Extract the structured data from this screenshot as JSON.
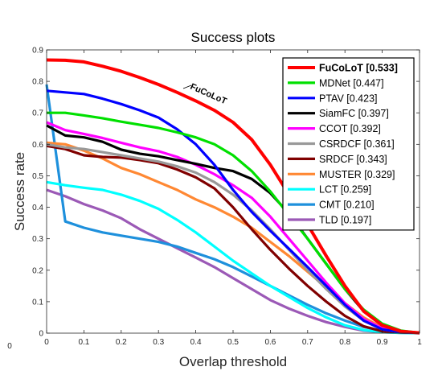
{
  "chart_data": {
    "type": "line",
    "title": "Success plots",
    "xlabel": "Overlap threshold",
    "ylabel": "Success rate",
    "xlim": [
      0,
      1
    ],
    "ylim": [
      0,
      0.9
    ],
    "x_ticks": [
      "0",
      "0.1",
      "0.2",
      "0.3",
      "0.4",
      "0.5",
      "0.6",
      "0.7",
      "0.8",
      "0.9",
      "1"
    ],
    "y_ticks": [
      "0",
      "0.1",
      "0.2",
      "0.3",
      "0.4",
      "0.5",
      "0.6",
      "0.7",
      "0.8",
      "0.9"
    ],
    "stray_tick": "0",
    "legend_position": "top-right",
    "annotation": "FuCoLoT",
    "grid": false,
    "x": [
      0,
      0.05,
      0.1,
      0.15,
      0.2,
      0.25,
      0.3,
      0.35,
      0.4,
      0.45,
      0.5,
      0.55,
      0.6,
      0.65,
      0.7,
      0.75,
      0.8,
      0.85,
      0.9,
      0.95,
      1.0
    ],
    "series": [
      {
        "name": "FuCoLoT [0.533]",
        "color": "#ff0000",
        "bold": true,
        "values": [
          0.868,
          0.867,
          0.862,
          0.848,
          0.832,
          0.812,
          0.79,
          0.765,
          0.738,
          0.708,
          0.67,
          0.615,
          0.535,
          0.44,
          0.345,
          0.245,
          0.15,
          0.07,
          0.025,
          0.006,
          0.001
        ]
      },
      {
        "name": "MDNet [0.447]",
        "color": "#00e000",
        "bold": false,
        "values": [
          0.7,
          0.7,
          0.692,
          0.683,
          0.672,
          0.662,
          0.652,
          0.638,
          0.622,
          0.6,
          0.565,
          0.515,
          0.45,
          0.375,
          0.3,
          0.22,
          0.14,
          0.075,
          0.03,
          0.008,
          0.001
        ]
      },
      {
        "name": "PTAV [0.423]",
        "color": "#0000ff",
        "bold": false,
        "values": [
          0.77,
          0.765,
          0.76,
          0.745,
          0.728,
          0.708,
          0.685,
          0.648,
          0.6,
          0.535,
          0.455,
          0.385,
          0.325,
          0.268,
          0.21,
          0.15,
          0.09,
          0.04,
          0.012,
          0.003,
          0.001
        ]
      },
      {
        "name": "SiamFC [0.397]",
        "color": "#000000",
        "bold": false,
        "values": [
          0.66,
          0.628,
          0.622,
          0.608,
          0.583,
          0.57,
          0.562,
          0.55,
          0.538,
          0.525,
          0.515,
          0.49,
          0.445,
          0.38,
          0.3,
          0.22,
          0.14,
          0.07,
          0.025,
          0.006,
          0.001
        ]
      },
      {
        "name": "CCOT [0.392]",
        "color": "#ff00ff",
        "bold": false,
        "values": [
          0.67,
          0.645,
          0.633,
          0.62,
          0.605,
          0.59,
          0.578,
          0.56,
          0.535,
          0.505,
          0.47,
          0.43,
          0.37,
          0.3,
          0.23,
          0.16,
          0.095,
          0.045,
          0.015,
          0.004,
          0.001
        ]
      },
      {
        "name": "CSRDCF [0.361]",
        "color": "#999999",
        "bold": false,
        "values": [
          0.6,
          0.59,
          0.585,
          0.575,
          0.565,
          0.555,
          0.545,
          0.53,
          0.51,
          0.48,
          0.44,
          0.39,
          0.33,
          0.265,
          0.2,
          0.14,
          0.085,
          0.04,
          0.012,
          0.003,
          0.001
        ]
      },
      {
        "name": "SRDCF [0.343]",
        "color": "#800000",
        "bold": false,
        "values": [
          0.595,
          0.585,
          0.565,
          0.56,
          0.558,
          0.55,
          0.54,
          0.52,
          0.495,
          0.46,
          0.4,
          0.33,
          0.265,
          0.205,
          0.15,
          0.1,
          0.055,
          0.022,
          0.006,
          0.002,
          0.001
        ]
      },
      {
        "name": "MUSTER [0.329]",
        "color": "#ff8833",
        "bold": false,
        "values": [
          0.605,
          0.6,
          0.58,
          0.555,
          0.525,
          0.505,
          0.48,
          0.455,
          0.425,
          0.4,
          0.37,
          0.335,
          0.29,
          0.245,
          0.195,
          0.145,
          0.095,
          0.05,
          0.018,
          0.004,
          0.001
        ]
      },
      {
        "name": "LCT [0.259]",
        "color": "#00ffff",
        "bold": false,
        "values": [
          0.48,
          0.47,
          0.462,
          0.455,
          0.44,
          0.42,
          0.395,
          0.36,
          0.32,
          0.275,
          0.23,
          0.19,
          0.15,
          0.115,
          0.08,
          0.05,
          0.025,
          0.01,
          0.003,
          0.001,
          0.0
        ]
      },
      {
        "name": "CMT [0.210]",
        "color": "#1e90dc",
        "bold": false,
        "values": [
          0.79,
          0.355,
          0.335,
          0.32,
          0.31,
          0.3,
          0.29,
          0.275,
          0.255,
          0.235,
          0.21,
          0.18,
          0.15,
          0.12,
          0.09,
          0.063,
          0.04,
          0.02,
          0.007,
          0.002,
          0.0
        ]
      },
      {
        "name": "TLD [0.197]",
        "color": "#9b59b6",
        "bold": false,
        "values": [
          0.455,
          0.435,
          0.41,
          0.39,
          0.365,
          0.33,
          0.3,
          0.27,
          0.24,
          0.21,
          0.175,
          0.14,
          0.105,
          0.078,
          0.055,
          0.035,
          0.02,
          0.008,
          0.003,
          0.001,
          0.0
        ]
      }
    ]
  }
}
